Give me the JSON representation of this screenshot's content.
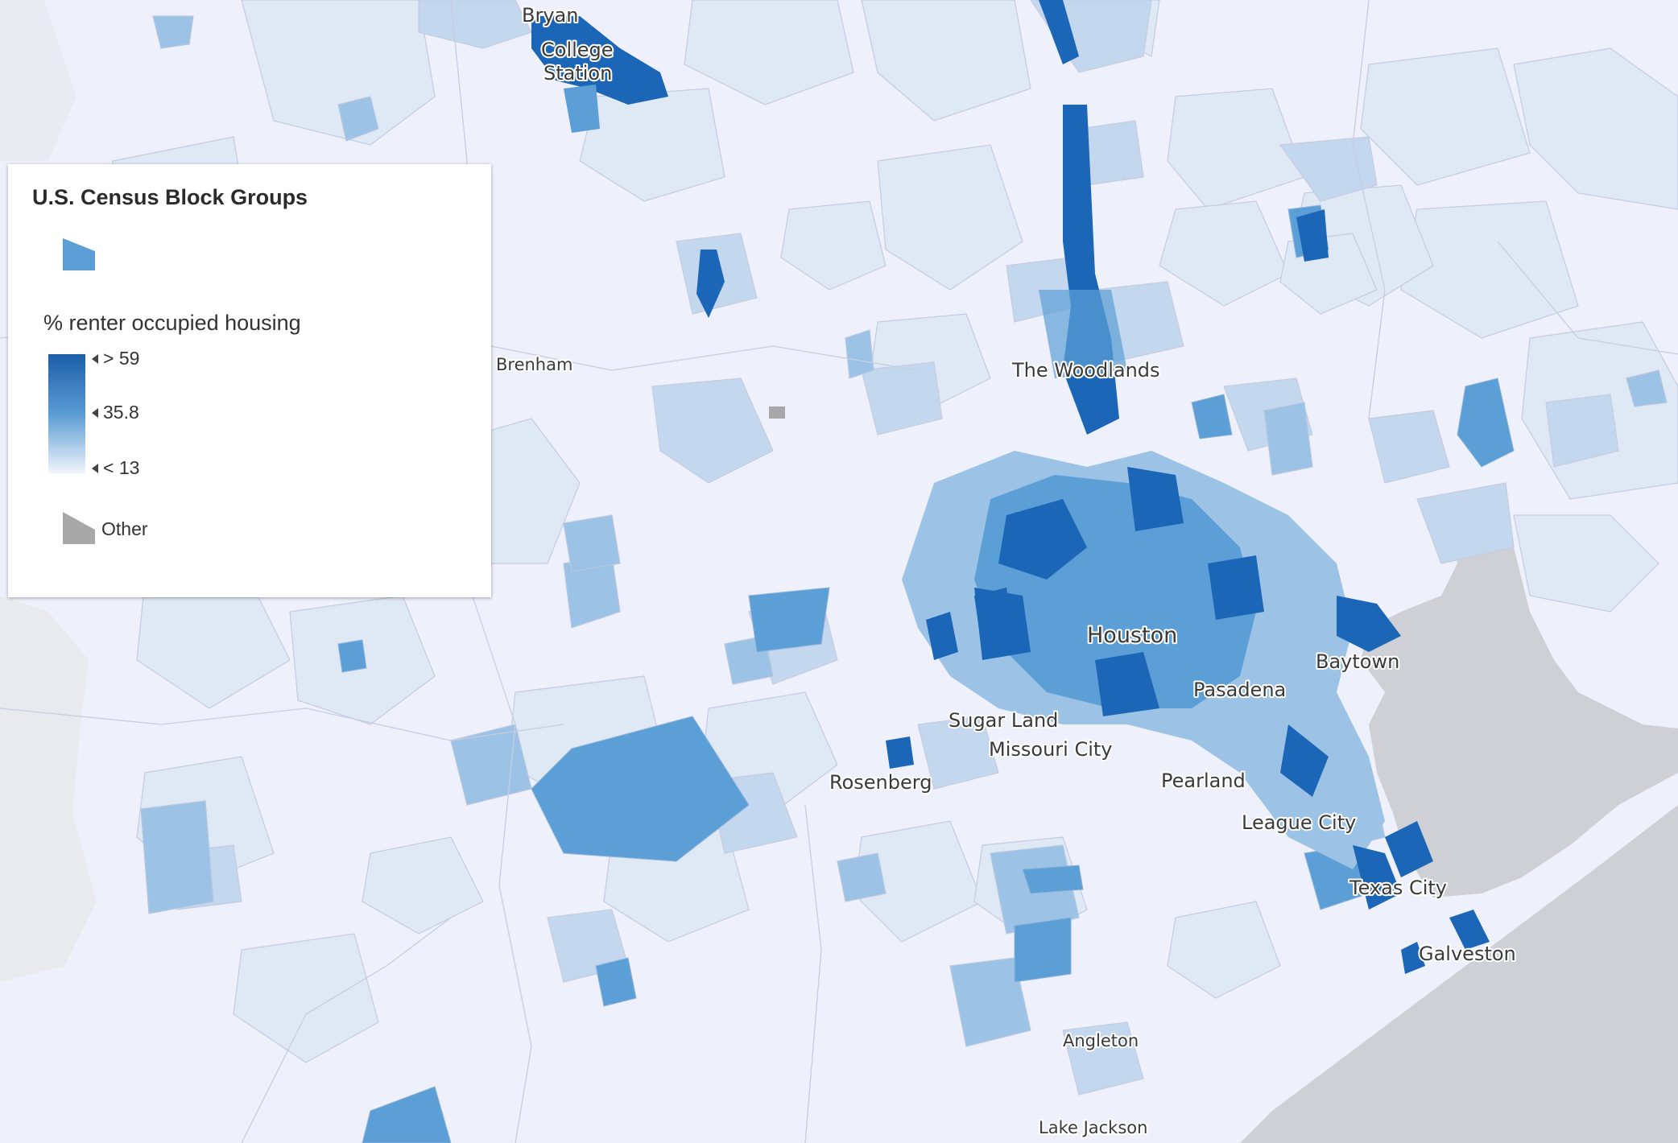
{
  "map": {
    "colors": {
      "background": "#eef1fb",
      "water": "#cfd0d5",
      "boundary": "#c4cbe0",
      "class_1": "#dfe8f5",
      "class_2": "#c3d8ee",
      "class_3": "#9cc3e5",
      "class_4": "#5c9fd6",
      "class_5": "#1c66b7",
      "other": "#a8a8a8"
    },
    "city_labels": [
      {
        "id": "bryan",
        "name": "Bryan"
      },
      {
        "id": "college-station-1",
        "name": "College"
      },
      {
        "id": "college-station-2",
        "name": "Station"
      },
      {
        "id": "brenham",
        "name": "Brenham"
      },
      {
        "id": "the-woodlands",
        "name": "The Woodlands"
      },
      {
        "id": "houston",
        "name": "Houston"
      },
      {
        "id": "baytown",
        "name": "Baytown"
      },
      {
        "id": "pasadena",
        "name": "Pasadena"
      },
      {
        "id": "sugar-land",
        "name": "Sugar Land"
      },
      {
        "id": "missouri-city",
        "name": "Missouri City"
      },
      {
        "id": "rosenberg",
        "name": "Rosenberg"
      },
      {
        "id": "pearland",
        "name": "Pearland"
      },
      {
        "id": "league-city",
        "name": "League City"
      },
      {
        "id": "texas-city",
        "name": "Texas City"
      },
      {
        "id": "galveston",
        "name": "Galveston"
      },
      {
        "id": "angleton",
        "name": "Angleton"
      },
      {
        "id": "lake-jackson",
        "name": "Lake Jackson"
      }
    ]
  },
  "legend": {
    "layer_title": "U.S. Census Block Groups",
    "field_title": "% renter occupied housing",
    "ramp": {
      "high_label": "> 59",
      "mid_label": "35.8",
      "low_label": "< 13",
      "high_color": "#1c5ea8",
      "mid_color": "#5a9bd4",
      "low_color": "#f1f5fc"
    },
    "other_label": "Other",
    "other_color": "#a8a8a8",
    "symbol_color": "#5c9fd6"
  }
}
